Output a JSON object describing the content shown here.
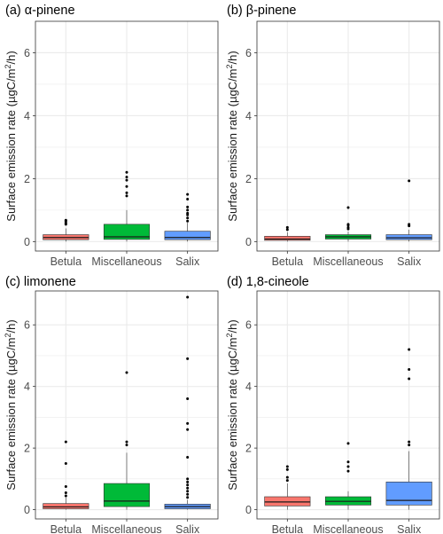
{
  "figure": {
    "colors": {
      "Betula": "#F8766D",
      "Miscellaneous": "#00BA38",
      "Salix": "#619CFF",
      "grid": "#ebebeb",
      "panel_border": "#333333",
      "outlier": "#000000"
    }
  },
  "chart_data": [
    {
      "type": "box",
      "title": "(a) α-pinene",
      "ylabel": "Surface emission rate (µgC/m²/h)",
      "ylabel_parts": {
        "main": "Surface emission rate (µgC/m",
        "sup": "2",
        "tail": "/h)"
      },
      "categories": [
        "Betula",
        "Miscellaneous",
        "Salix"
      ],
      "yticks": [
        0,
        2,
        4,
        6
      ],
      "ylim": [
        -0.3,
        7.0
      ],
      "grid": true,
      "boxes": [
        {
          "category": "Betula",
          "min": 0.0,
          "q1": 0.06,
          "median": 0.13,
          "q3": 0.22,
          "max": 0.42,
          "outliers": [
            0.55,
            0.6,
            0.65,
            0.68
          ]
        },
        {
          "category": "Miscellaneous",
          "min": 0.0,
          "q1": 0.07,
          "median": 0.15,
          "q3": 0.55,
          "max": 1.0,
          "outliers": [
            1.45,
            1.55,
            1.75,
            1.95,
            2.05,
            2.2
          ]
        },
        {
          "category": "Salix",
          "min": 0.0,
          "q1": 0.06,
          "median": 0.13,
          "q3": 0.33,
          "max": 0.6,
          "outliers": [
            0.65,
            0.75,
            0.85,
            0.9,
            1.0,
            1.1,
            1.35,
            1.5
          ]
        }
      ]
    },
    {
      "type": "box",
      "title": "(b) β-pinene",
      "ylabel": "Surface emission rate (µgC/m²/h)",
      "ylabel_parts": {
        "main": "Surface emission rate (µgC/m",
        "sup": "2",
        "tail": "/h)"
      },
      "categories": [
        "Betula",
        "Miscellaneous",
        "Salix"
      ],
      "yticks": [
        0,
        2,
        4,
        6
      ],
      "ylim": [
        -0.3,
        7.0
      ],
      "grid": true,
      "boxes": [
        {
          "category": "Betula",
          "min": 0.0,
          "q1": 0.04,
          "median": 0.08,
          "q3": 0.17,
          "max": 0.3,
          "outliers": [
            0.38,
            0.45
          ]
        },
        {
          "category": "Miscellaneous",
          "min": 0.0,
          "q1": 0.08,
          "median": 0.15,
          "q3": 0.22,
          "max": 0.32,
          "outliers": [
            0.4,
            0.45,
            0.52,
            0.55,
            1.08
          ]
        },
        {
          "category": "Salix",
          "min": 0.0,
          "q1": 0.06,
          "median": 0.12,
          "q3": 0.22,
          "max": 0.38,
          "outliers": [
            0.5,
            0.55,
            1.93
          ]
        }
      ]
    },
    {
      "type": "box",
      "title": "(c) limonene",
      "ylabel": "Surface emission rate (µgC/m²/h)",
      "ylabel_parts": {
        "main": "Surface emission rate (µgC/m",
        "sup": "2",
        "tail": "/h)"
      },
      "categories": [
        "Betula",
        "Miscellaneous",
        "Salix"
      ],
      "yticks": [
        0,
        2,
        4,
        6
      ],
      "ylim": [
        -0.3,
        7.1
      ],
      "grid": true,
      "boxes": [
        {
          "category": "Betula",
          "min": 0.0,
          "q1": 0.03,
          "median": 0.09,
          "q3": 0.2,
          "max": 0.4,
          "outliers": [
            0.45,
            0.55,
            0.75,
            1.5,
            2.2
          ]
        },
        {
          "category": "Miscellaneous",
          "min": 0.0,
          "q1": 0.1,
          "median": 0.28,
          "q3": 0.85,
          "max": 1.85,
          "outliers": [
            2.1,
            2.2,
            4.45
          ]
        },
        {
          "category": "Salix",
          "min": 0.0,
          "q1": 0.03,
          "median": 0.1,
          "q3": 0.18,
          "max": 0.32,
          "outliers": [
            0.4,
            0.5,
            0.6,
            0.7,
            0.8,
            0.9,
            1.0,
            1.7,
            2.6,
            2.8,
            3.6,
            4.9,
            6.9
          ]
        }
      ]
    },
    {
      "type": "box",
      "title": "(d) 1,8-cineole",
      "ylabel": "Surface emission rate (µgC/m²/h)",
      "ylabel_parts": {
        "main": "Surface emission rate (µgC/m",
        "sup": "2",
        "tail": "/h)"
      },
      "categories": [
        "Betula",
        "Miscellaneous",
        "Salix"
      ],
      "yticks": [
        0,
        2,
        4,
        6
      ],
      "ylim": [
        -0.3,
        7.1
      ],
      "grid": true,
      "boxes": [
        {
          "category": "Betula",
          "min": 0.0,
          "q1": 0.12,
          "median": 0.25,
          "q3": 0.42,
          "max": 0.85,
          "outliers": [
            0.95,
            1.05,
            1.3,
            1.4
          ]
        },
        {
          "category": "Miscellaneous",
          "min": 0.0,
          "q1": 0.15,
          "median": 0.27,
          "q3": 0.42,
          "max": 0.6,
          "outliers": [
            1.25,
            1.4,
            1.55,
            2.15
          ]
        },
        {
          "category": "Salix",
          "min": 0.0,
          "q1": 0.15,
          "median": 0.3,
          "q3": 0.9,
          "max": 1.9,
          "outliers": [
            2.1,
            2.2,
            4.25,
            4.55,
            5.2
          ]
        }
      ]
    }
  ]
}
